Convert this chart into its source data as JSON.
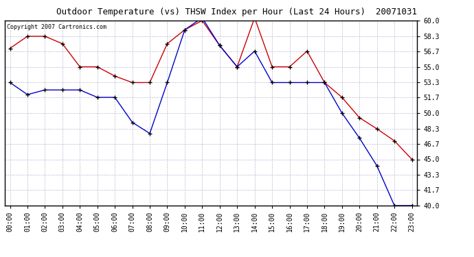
{
  "title": "Outdoor Temperature (vs) THSW Index per Hour (Last 24 Hours)  20071031",
  "copyright": "Copyright 2007 Cartronics.com",
  "hours": [
    "00:00",
    "01:00",
    "02:00",
    "03:00",
    "04:00",
    "05:00",
    "06:00",
    "07:00",
    "08:00",
    "09:00",
    "10:00",
    "11:00",
    "12:00",
    "13:00",
    "14:00",
    "15:00",
    "16:00",
    "17:00",
    "18:00",
    "19:00",
    "20:00",
    "21:00",
    "22:00",
    "23:00"
  ],
  "red_line": [
    57.0,
    58.3,
    58.3,
    57.5,
    55.0,
    55.0,
    54.0,
    53.3,
    53.3,
    57.5,
    59.0,
    60.0,
    57.3,
    55.0,
    60.3,
    55.0,
    55.0,
    56.7,
    53.3,
    51.7,
    49.5,
    48.3,
    47.0,
    45.0
  ],
  "blue_line": [
    53.3,
    52.0,
    52.5,
    52.5,
    52.5,
    51.7,
    51.7,
    49.0,
    47.8,
    53.3,
    59.0,
    60.3,
    57.3,
    55.0,
    56.7,
    53.3,
    53.3,
    53.3,
    53.3,
    50.0,
    47.3,
    44.3,
    40.0,
    40.0
  ],
  "ylim": [
    40.0,
    60.0
  ],
  "yticks": [
    40.0,
    41.7,
    43.3,
    45.0,
    46.7,
    48.3,
    50.0,
    51.7,
    53.3,
    55.0,
    56.7,
    58.3,
    60.0
  ],
  "red_color": "#cc0000",
  "blue_color": "#0000cc",
  "bg_color": "#ffffff",
  "grid_color": "#aaaacc",
  "title_color": "#000000",
  "copyright_color": "#000000",
  "figwidth": 6.9,
  "figheight": 3.75,
  "dpi": 100
}
